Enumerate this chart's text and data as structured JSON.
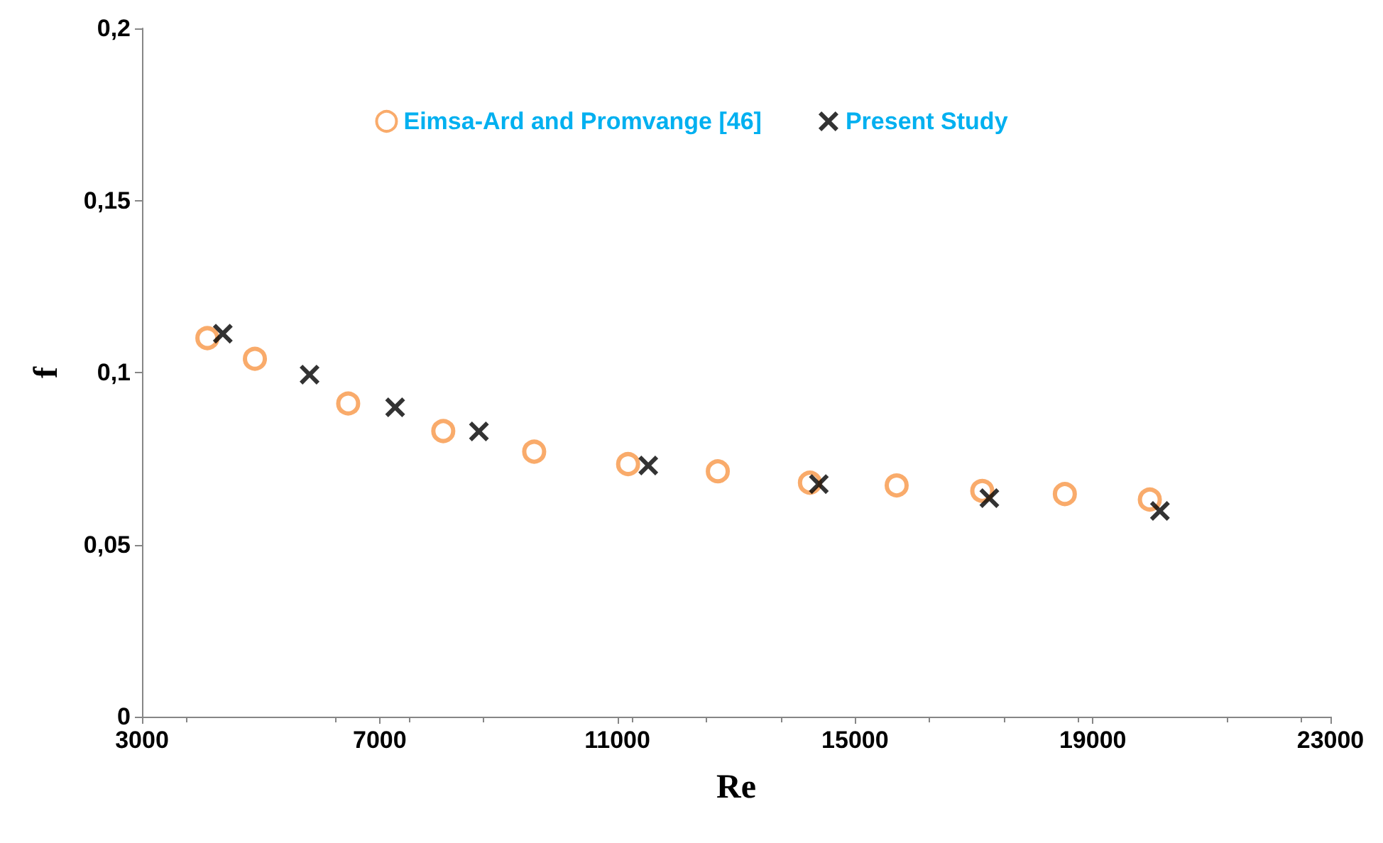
{
  "chart_data": {
    "type": "scatter",
    "xlabel": "Re",
    "ylabel": "f",
    "series": [
      {
        "name": "Eimsa-Ard and Promvange [46]",
        "color": "#f79646",
        "marker": "circle",
        "x": [
          4100,
          4900,
          6470,
          8070,
          9600,
          11180,
          12690,
          14240,
          15700,
          17140,
          18530,
          19960
        ],
        "values": [
          0.11,
          0.104,
          0.091,
          0.083,
          0.077,
          0.0734,
          0.0713,
          0.068,
          0.0672,
          0.0656,
          0.0647,
          0.0631
        ]
      },
      {
        "name": "Present Study",
        "color": "#000000",
        "marker": "cross",
        "x": [
          4360,
          5820,
          7260,
          8670,
          11520,
          14390,
          17260,
          20130
        ],
        "values": [
          0.1113,
          0.0994,
          0.0899,
          0.0829,
          0.073,
          0.0676,
          0.0635,
          0.0598
        ]
      }
    ],
    "xlim": [
      3000,
      23000
    ],
    "xticks": [
      3000,
      7000,
      11000,
      15000,
      19000,
      23000
    ],
    "ylim": [
      0,
      0.2
    ],
    "yticks": [
      0,
      {
        "value": 0.05,
        "label": "0,05"
      },
      {
        "value": 0.1,
        "label": "0,1"
      },
      {
        "value": 0.15,
        "label": "0,15"
      },
      {
        "value": 0.2,
        "label": "0,2"
      }
    ],
    "grid": false,
    "legend": "top"
  }
}
